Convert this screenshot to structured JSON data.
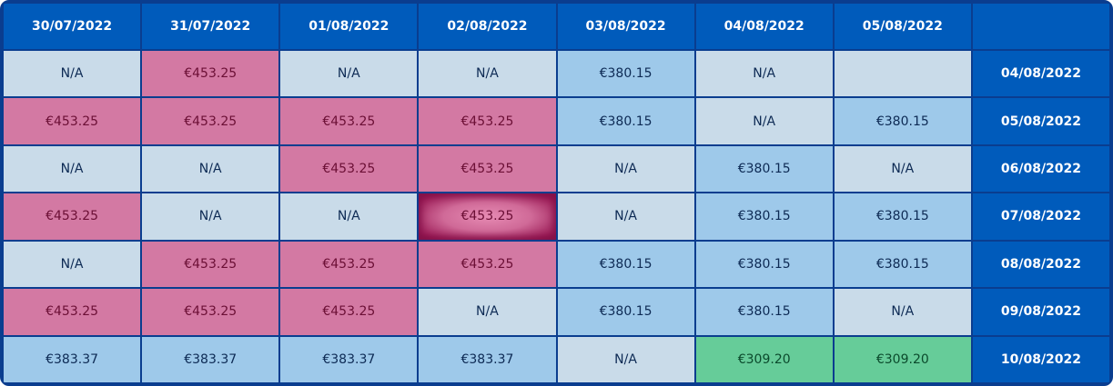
{
  "columns": [
    "30/07/2022",
    "31/07/2022",
    "01/08/2022",
    "02/08/2022",
    "03/08/2022",
    "04/08/2022",
    "05/08/2022"
  ],
  "colors": {
    "header": "#005bbb",
    "na": "#c9dbe9",
    "pink": "#d379a3",
    "blue": "#9ec9ea",
    "green": "#66cc99",
    "selected": "#d06a98"
  },
  "rows": [
    {
      "date": "04/08/2022",
      "cells": [
        {
          "text": "N/A",
          "type": "na"
        },
        {
          "text": "€453.25",
          "type": "pink"
        },
        {
          "text": "N/A",
          "type": "na"
        },
        {
          "text": "N/A",
          "type": "na"
        },
        {
          "text": "€380.15",
          "type": "blue"
        },
        {
          "text": "N/A",
          "type": "na"
        },
        {
          "text": "",
          "type": "blank"
        }
      ]
    },
    {
      "date": "05/08/2022",
      "cells": [
        {
          "text": "€453.25",
          "type": "pink"
        },
        {
          "text": "€453.25",
          "type": "pink"
        },
        {
          "text": "€453.25",
          "type": "pink"
        },
        {
          "text": "€453.25",
          "type": "pink"
        },
        {
          "text": "€380.15",
          "type": "blue"
        },
        {
          "text": "N/A",
          "type": "na"
        },
        {
          "text": "€380.15",
          "type": "blue"
        }
      ]
    },
    {
      "date": "06/08/2022",
      "cells": [
        {
          "text": "N/A",
          "type": "na"
        },
        {
          "text": "N/A",
          "type": "na"
        },
        {
          "text": "€453.25",
          "type": "pink"
        },
        {
          "text": "€453.25",
          "type": "pink"
        },
        {
          "text": "N/A",
          "type": "na"
        },
        {
          "text": "€380.15",
          "type": "blue"
        },
        {
          "text": "N/A",
          "type": "na"
        }
      ]
    },
    {
      "date": "07/08/2022",
      "cells": [
        {
          "text": "€453.25",
          "type": "pink"
        },
        {
          "text": "N/A",
          "type": "na"
        },
        {
          "text": "N/A",
          "type": "na"
        },
        {
          "text": "€453.25",
          "type": "selected"
        },
        {
          "text": "N/A",
          "type": "na"
        },
        {
          "text": "€380.15",
          "type": "blue"
        },
        {
          "text": "€380.15",
          "type": "blue"
        }
      ]
    },
    {
      "date": "08/08/2022",
      "cells": [
        {
          "text": "N/A",
          "type": "na"
        },
        {
          "text": "€453.25",
          "type": "pink"
        },
        {
          "text": "€453.25",
          "type": "pink"
        },
        {
          "text": "€453.25",
          "type": "pink"
        },
        {
          "text": "€380.15",
          "type": "blue"
        },
        {
          "text": "€380.15",
          "type": "blue"
        },
        {
          "text": "€380.15",
          "type": "blue"
        }
      ]
    },
    {
      "date": "09/08/2022",
      "cells": [
        {
          "text": "€453.25",
          "type": "pink"
        },
        {
          "text": "€453.25",
          "type": "pink"
        },
        {
          "text": "€453.25",
          "type": "pink"
        },
        {
          "text": "N/A",
          "type": "na"
        },
        {
          "text": "€380.15",
          "type": "blue"
        },
        {
          "text": "€380.15",
          "type": "blue"
        },
        {
          "text": "N/A",
          "type": "na"
        }
      ]
    },
    {
      "date": "10/08/2022",
      "cells": [
        {
          "text": "€383.37",
          "type": "blue"
        },
        {
          "text": "€383.37",
          "type": "blue"
        },
        {
          "text": "€383.37",
          "type": "blue"
        },
        {
          "text": "€383.37",
          "type": "blue"
        },
        {
          "text": "N/A",
          "type": "na"
        },
        {
          "text": "€309.20",
          "type": "green"
        },
        {
          "text": "€309.20",
          "type": "green"
        }
      ]
    }
  ]
}
